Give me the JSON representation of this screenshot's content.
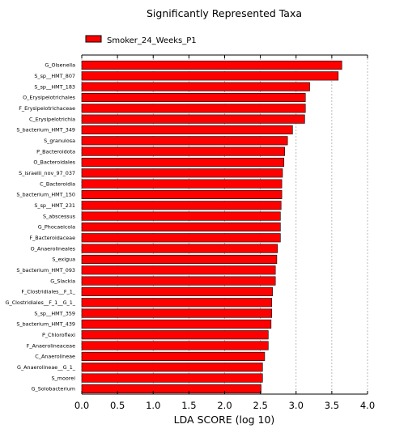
{
  "chart_data": {
    "type": "bar",
    "orientation": "horizontal",
    "title": "Significantly Represented Taxa",
    "xlabel": "LDA SCORE (log 10)",
    "ylabel": "",
    "xlim": [
      0,
      4.0
    ],
    "xticks": [
      "0.0",
      "0.5",
      "1.0",
      "1.5",
      "2.0",
      "2.5",
      "3.0",
      "3.5",
      "4.0"
    ],
    "xtick_values": [
      0,
      0.5,
      1.0,
      1.5,
      2.0,
      2.5,
      3.0,
      3.5,
      4.0
    ],
    "grid": "vertical dashed",
    "legend_position": "top-left",
    "series": [
      {
        "name": "Smoker_24_Weeks_P1",
        "color": "#ff0000"
      }
    ],
    "categories": [
      "G_Olsenella",
      "S_sp__HMT_807",
      "S_sp__HMT_183",
      "O_Erysipelotrichales",
      "F_Erysipelotrichaceae",
      "C_Erysipelotrichia",
      "S_bacterium_HMT_349",
      "S_granulosa",
      "P_Bacteroidota",
      "O_Bacteroidales",
      "S_israelii_nov_97_037",
      "C_Bacteroidia",
      "S_bacterium_HMT_150",
      "S_sp__HMT_231",
      "S_abscessus",
      "G_Phocaeicola",
      "F_Bacteroidaceae",
      "O_Anaerolineales",
      "S_exigua",
      "S_bacterium_HMT_093",
      "G_Slackia",
      "F_Clostridiales__F_1_",
      "G_Clostridiales__F_1__G_1_",
      "S_sp__HMT_359",
      "S_bacterium_HMT_439",
      "P_Chloroflexi",
      "F_Anaerolineaceae",
      "C_Anaerolineae",
      "G_Anaerolineae__G_1_",
      "S_moorei",
      "G_Solobacterium"
    ],
    "values": [
      3.64,
      3.59,
      3.19,
      3.13,
      3.13,
      3.12,
      2.95,
      2.88,
      2.84,
      2.83,
      2.81,
      2.8,
      2.8,
      2.79,
      2.78,
      2.78,
      2.78,
      2.74,
      2.73,
      2.71,
      2.71,
      2.67,
      2.66,
      2.66,
      2.65,
      2.61,
      2.61,
      2.56,
      2.53,
      2.53,
      2.51
    ]
  }
}
